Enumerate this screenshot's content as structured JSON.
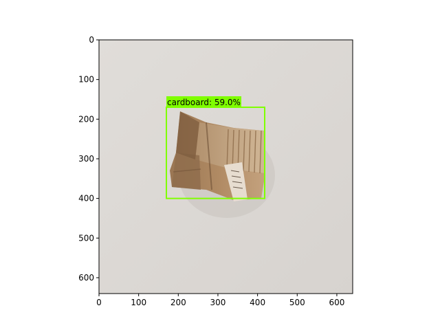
{
  "figure": {
    "axes": {
      "x": {
        "min": 0,
        "max": 640,
        "ticks": [
          0,
          100,
          200,
          300,
          400,
          500,
          600
        ],
        "tick_labels": [
          "0",
          "100",
          "200",
          "300",
          "400",
          "500",
          "600"
        ]
      },
      "y": {
        "min": 0,
        "max": 640,
        "ticks": [
          0,
          100,
          200,
          300,
          400,
          500,
          600
        ],
        "tick_labels": [
          "0",
          "100",
          "200",
          "300",
          "400",
          "500",
          "600"
        ]
      }
    },
    "detection": {
      "label": "cardboard: 59.0%",
      "class": "cardboard",
      "confidence": 0.59,
      "box": {
        "x_min": 170,
        "y_min": 170,
        "x_max": 418,
        "y_max": 400
      },
      "color": "#7fff00"
    },
    "colors": {
      "image_background": "#dcd9d5",
      "cardboard": "#a7825e",
      "box": "#7fff00"
    }
  }
}
